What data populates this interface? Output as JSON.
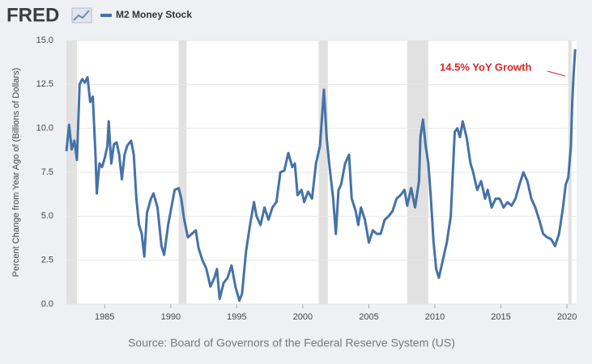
{
  "brand": "FRED",
  "chart_data": {
    "type": "line",
    "legend": "M2 Money Stock",
    "y_label": "Percent Change from Year Ago of (Billions of Dollars)",
    "source": "Source: Board of Governors of the Federal Reserve System (US)",
    "annotation": "14.5% YoY Growth",
    "annotation_color": "#d62728",
    "xlim": [
      1982.1,
      2020.73
    ],
    "xticks": [
      1985,
      1990,
      1995,
      2000,
      2005,
      2010,
      2015,
      2020
    ],
    "ylim": [
      0,
      15
    ],
    "yticks": [
      {
        "value": 0,
        "label": "0.0"
      },
      2.5,
      {
        "value": 5,
        "label": "5.0"
      },
      7.5,
      {
        "value": 10,
        "label": "10.0"
      },
      12.5,
      {
        "value": 15,
        "label": "15.0"
      }
    ],
    "grid": true,
    "recessions": [
      [
        1981.5,
        1982.9
      ],
      [
        1990.6,
        1991.2
      ],
      [
        2001.2,
        2001.9
      ],
      [
        2007.9,
        2009.5
      ],
      [
        2020.1,
        2020.35
      ]
    ],
    "series": [
      {
        "name": "M2 Money Stock",
        "color": "#4572a7",
        "x": [
          1982.1,
          1982.3,
          1982.5,
          1982.7,
          1982.9,
          1983.1,
          1983.3,
          1983.5,
          1983.7,
          1983.9,
          1984.1,
          1984.3,
          1984.4,
          1984.6,
          1984.8,
          1985.0,
          1985.2,
          1985.3,
          1985.5,
          1985.7,
          1985.9,
          1986.1,
          1986.3,
          1986.5,
          1986.7,
          1987.0,
          1987.2,
          1987.4,
          1987.6,
          1987.8,
          1988.0,
          1988.2,
          1988.5,
          1988.7,
          1989.0,
          1989.3,
          1989.5,
          1989.8,
          1990.0,
          1990.3,
          1990.6,
          1990.8,
          1991.0,
          1991.3,
          1991.6,
          1991.9,
          1992.1,
          1992.4,
          1992.7,
          1993.0,
          1993.3,
          1993.5,
          1993.7,
          1994.0,
          1994.3,
          1994.6,
          1994.9,
          1995.2,
          1995.4,
          1995.7,
          1996.0,
          1996.3,
          1996.5,
          1996.8,
          1997.1,
          1997.4,
          1997.7,
          1998.0,
          1998.3,
          1998.6,
          1998.9,
          1999.2,
          1999.4,
          1999.6,
          1999.9,
          2000.1,
          2000.4,
          2000.7,
          2001.0,
          2001.3,
          2001.6,
          2001.8,
          2002.0,
          2002.3,
          2002.5,
          2002.7,
          2002.9,
          2003.2,
          2003.5,
          2003.7,
          2004.0,
          2004.2,
          2004.4,
          2004.7,
          2005.0,
          2005.3,
          2005.6,
          2005.9,
          2006.2,
          2006.5,
          2006.8,
          2007.1,
          2007.4,
          2007.7,
          2007.9,
          2008.2,
          2008.5,
          2008.8,
          2008.9,
          2009.1,
          2009.3,
          2009.5,
          2009.7,
          2009.9,
          2010.1,
          2010.3,
          2010.6,
          2010.9,
          2011.2,
          2011.5,
          2011.7,
          2011.9,
          2012.1,
          2012.4,
          2012.7,
          2012.9,
          2013.2,
          2013.5,
          2013.8,
          2014.0,
          2014.3,
          2014.6,
          2014.9,
          2015.2,
          2015.5,
          2015.8,
          2016.1,
          2016.4,
          2016.7,
          2017.0,
          2017.3,
          2017.6,
          2017.9,
          2018.2,
          2018.5,
          2018.8,
          2019.1,
          2019.4,
          2019.7,
          2019.9,
          2020.1,
          2020.3,
          2020.4,
          2020.5,
          2020.62
        ],
        "values": [
          8.7,
          10.2,
          8.8,
          9.3,
          8.2,
          12.5,
          12.8,
          12.6,
          12.9,
          11.5,
          11.8,
          8.5,
          6.3,
          8.0,
          7.8,
          8.3,
          9.0,
          10.4,
          8.0,
          9.1,
          9.2,
          8.5,
          7.1,
          8.5,
          9.0,
          9.3,
          8.5,
          6.0,
          4.5,
          4.0,
          2.7,
          5.2,
          6.0,
          6.3,
          5.5,
          3.3,
          2.8,
          4.5,
          5.3,
          6.5,
          6.6,
          6.0,
          4.9,
          3.8,
          4.0,
          4.2,
          3.2,
          2.5,
          2.0,
          1.0,
          1.5,
          2.0,
          0.3,
          1.2,
          1.5,
          2.2,
          1.0,
          0.2,
          0.6,
          3.0,
          4.5,
          5.8,
          5.0,
          4.5,
          5.5,
          4.8,
          5.5,
          5.8,
          7.5,
          7.6,
          8.6,
          7.8,
          8.0,
          6.2,
          6.5,
          5.8,
          6.4,
          6.0,
          8.0,
          9.0,
          12.2,
          9.5,
          8.0,
          6.0,
          4.0,
          6.5,
          6.8,
          8.0,
          8.5,
          6.0,
          5.3,
          4.5,
          5.5,
          4.8,
          3.5,
          4.2,
          4.0,
          4.0,
          4.8,
          5.0,
          5.3,
          6.0,
          6.2,
          6.5,
          5.6,
          6.6,
          5.5,
          7.0,
          9.5,
          10.5,
          9.0,
          8.0,
          6.0,
          3.5,
          2.0,
          1.5,
          2.5,
          3.5,
          5.0,
          9.8,
          10.0,
          9.5,
          10.4,
          9.5,
          8.0,
          7.5,
          6.5,
          7.0,
          6.0,
          6.5,
          5.5,
          6.0,
          6.0,
          5.5,
          5.8,
          5.6,
          6.0,
          6.8,
          7.5,
          7.0,
          6.0,
          5.5,
          4.8,
          4.0,
          3.8,
          3.7,
          3.3,
          4.0,
          5.5,
          6.8,
          7.2,
          9.0,
          11.5,
          13.0,
          14.5
        ]
      }
    ]
  }
}
